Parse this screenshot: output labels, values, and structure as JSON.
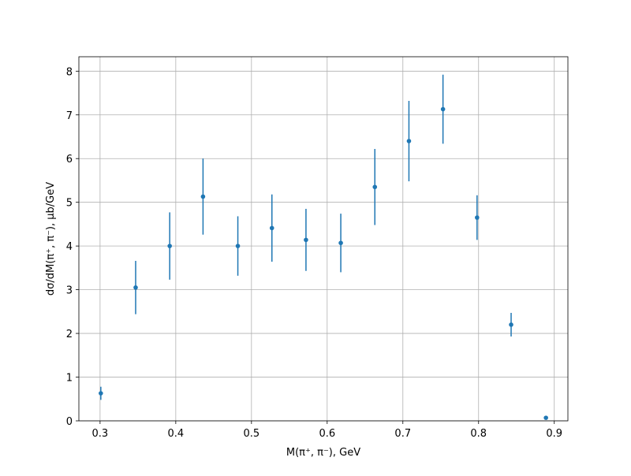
{
  "chart_data": {
    "type": "errorbar",
    "xlabel": "M(π⁺, π⁻), GeV",
    "ylabel": "dσ/dM(π⁺, π⁻), μb/GeV",
    "x": [
      0.301,
      0.347,
      0.392,
      0.436,
      0.482,
      0.527,
      0.572,
      0.618,
      0.663,
      0.708,
      0.753,
      0.798,
      0.843,
      0.889
    ],
    "values": [
      0.63,
      3.05,
      4.0,
      5.13,
      4.0,
      4.41,
      4.14,
      4.07,
      5.35,
      6.4,
      7.13,
      4.65,
      2.2,
      0.07
    ],
    "errors": [
      0.15,
      0.61,
      0.77,
      0.87,
      0.68,
      0.77,
      0.71,
      0.67,
      0.87,
      0.92,
      0.79,
      0.51,
      0.27,
      0.02
    ],
    "color": "#1f77b4",
    "xlim": [
      0.272,
      0.918
    ],
    "xticks": [
      0.3,
      0.4,
      0.5,
      0.6,
      0.7,
      0.8,
      0.9
    ],
    "ylim": [
      0,
      8.33
    ],
    "yticks": [
      0,
      1,
      2,
      3,
      4,
      5,
      6,
      7,
      8
    ],
    "grid": true
  }
}
